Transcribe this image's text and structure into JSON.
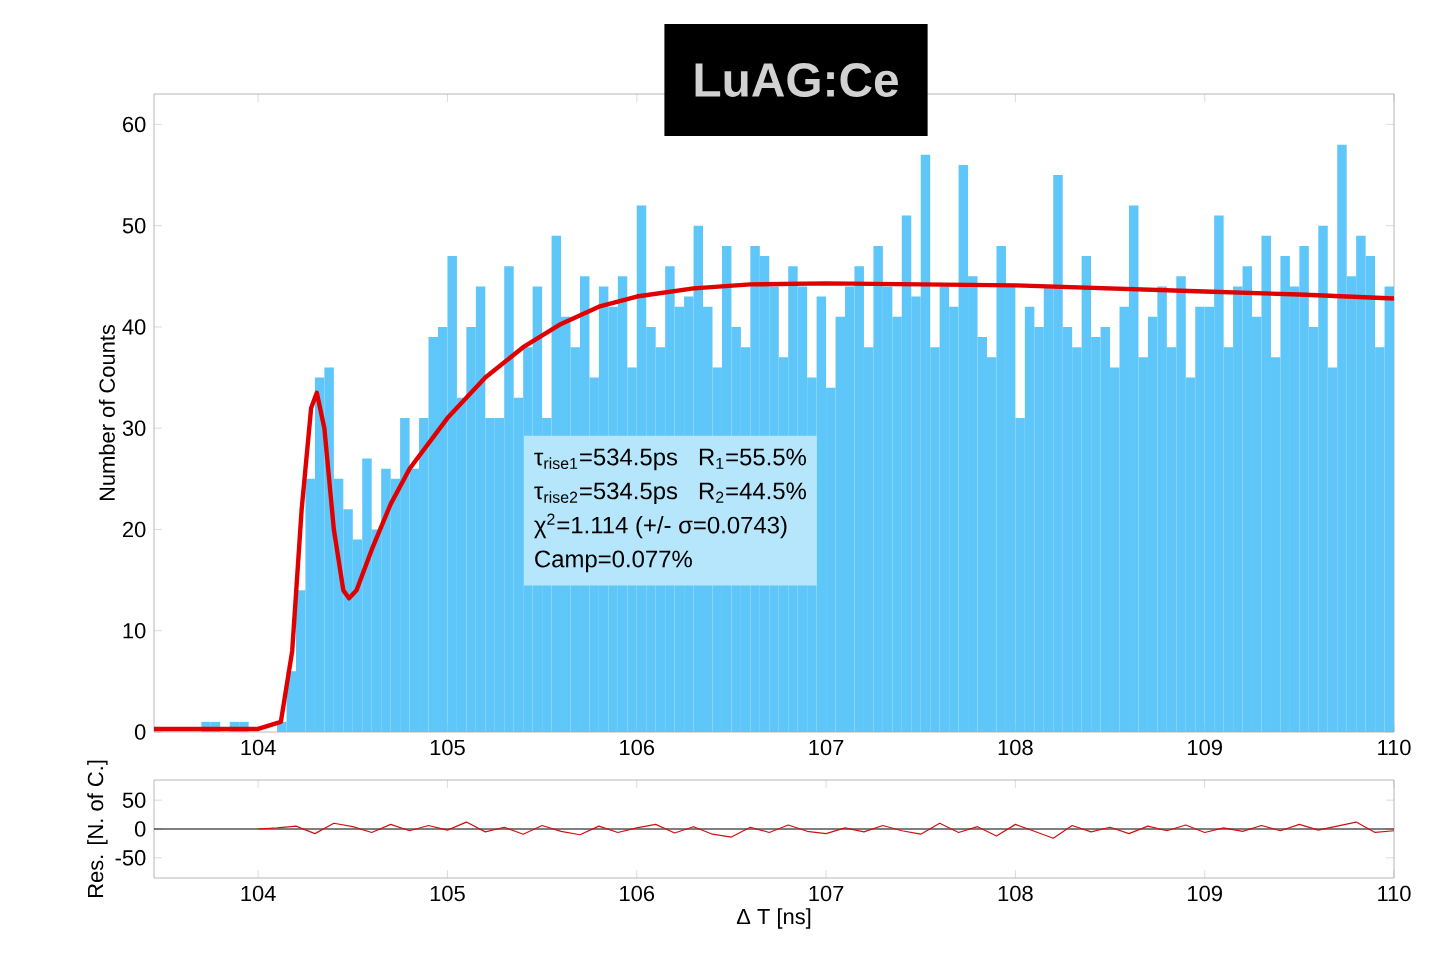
{
  "chart_data": [
    {
      "type": "histogram",
      "title": "LuAG:Ce",
      "ylabel": "Number of Counts",
      "color": "#5ec6f9",
      "bins": [
        103.5,
        103.55,
        103.6,
        103.65,
        103.7,
        103.75,
        103.8,
        103.85,
        103.9,
        103.95,
        104.0,
        104.05,
        104.1,
        104.15,
        104.2,
        104.25,
        104.3,
        104.35,
        104.4,
        104.45,
        104.5,
        104.55,
        104.6,
        104.65,
        104.7,
        104.75,
        104.8,
        104.85,
        104.9,
        104.95,
        105.0,
        105.05,
        105.1,
        105.15,
        105.2,
        105.25,
        105.3,
        105.35,
        105.4,
        105.45,
        105.5,
        105.55,
        105.6,
        105.65,
        105.7,
        105.75,
        105.8,
        105.85,
        105.9,
        105.95,
        106.0,
        106.05,
        106.1,
        106.15,
        106.2,
        106.25,
        106.3,
        106.35,
        106.4,
        106.45,
        106.5,
        106.55,
        106.6,
        106.65,
        106.7,
        106.75,
        106.8,
        106.85,
        106.9,
        106.95,
        107.0,
        107.05,
        107.1,
        107.15,
        107.2,
        107.25,
        107.3,
        107.35,
        107.4,
        107.45,
        107.5,
        107.55,
        107.6,
        107.65,
        107.7,
        107.75,
        107.8,
        107.85,
        107.9,
        107.95,
        108.0,
        108.05,
        108.1,
        108.15,
        108.2,
        108.25,
        108.3,
        108.35,
        108.4,
        108.45,
        108.5,
        108.55,
        108.6,
        108.65,
        108.7,
        108.75,
        108.8,
        108.85,
        108.9,
        108.95,
        109.0,
        109.05,
        109.1,
        109.15,
        109.2,
        109.25,
        109.3,
        109.35,
        109.4,
        109.45,
        109.5,
        109.55,
        109.6,
        109.65,
        109.7,
        109.75,
        109.8,
        109.85,
        109.9,
        109.95,
        110.0
      ],
      "values": [
        0,
        0,
        0,
        0,
        1,
        1,
        0,
        1,
        1,
        0,
        0,
        0,
        1,
        6,
        14,
        25,
        35,
        36,
        25,
        22,
        19,
        27,
        20,
        26,
        25,
        31,
        26,
        31,
        39,
        40,
        47,
        33,
        40,
        44,
        31,
        31,
        46,
        33,
        38,
        44,
        31,
        49,
        41,
        38,
        45,
        35,
        44,
        42,
        45,
        36,
        52,
        40,
        38,
        46,
        42,
        43,
        50,
        42,
        36,
        48,
        40,
        38,
        48,
        47,
        44,
        37,
        46,
        44,
        35,
        43,
        34,
        41,
        44,
        46,
        38,
        48,
        44,
        41,
        51,
        43,
        57,
        38,
        44,
        42,
        56,
        45,
        39,
        37,
        48,
        44,
        31,
        42,
        40,
        44,
        55,
        40,
        38,
        47,
        39,
        40,
        36,
        42,
        52,
        37,
        41,
        44,
        38,
        45,
        35,
        42,
        42,
        51,
        38,
        44,
        46,
        41,
        49,
        37,
        47,
        44,
        48,
        40,
        50,
        36,
        58,
        45,
        49,
        47,
        38,
        44
      ],
      "series": [
        {
          "type": "line",
          "color": "#e00000",
          "x": [
            103.45,
            104.0,
            104.12,
            104.18,
            104.23,
            104.28,
            104.31,
            104.35,
            104.4,
            104.45,
            104.48,
            104.52,
            104.6,
            104.7,
            104.8,
            105.0,
            105.2,
            105.4,
            105.6,
            105.8,
            106.0,
            106.3,
            106.6,
            107.0,
            107.5,
            108.0,
            108.5,
            109.0,
            109.5,
            110.0
          ],
          "values": [
            0.3,
            0.3,
            1,
            8,
            22,
            32,
            33.5,
            30,
            20,
            14,
            13.2,
            14,
            18,
            22.5,
            26,
            31,
            35,
            38,
            40.3,
            42,
            43,
            43.8,
            44.2,
            44.3,
            44.2,
            44.1,
            43.8,
            43.5,
            43.2,
            42.8
          ]
        }
      ],
      "xlim": [
        103.45,
        110
      ],
      "ylim": [
        0,
        63
      ],
      "xticks": [
        104,
        105,
        106,
        107,
        108,
        109,
        110
      ],
      "yticks": [
        0,
        10,
        20,
        30,
        40,
        50,
        60
      ],
      "annotations": [
        "τ$_{rise1}$=534.5ps",
        "R$_{1}$=55.5%",
        "τ$_{rise2}$=534.5ps",
        "R$_{2}$=44.5%",
        "χ$^{2}$=1.114 (+/- σ=0.0743)",
        "Camp=0.077%"
      ]
    },
    {
      "type": "line",
      "xlabel": "Δ T [ns]",
      "ylabel": "Res. [N. of C.]",
      "x": [
        104.0,
        104.1,
        104.2,
        104.3,
        104.4,
        104.5,
        104.6,
        104.7,
        104.8,
        104.9,
        105.0,
        105.1,
        105.2,
        105.3,
        105.4,
        105.5,
        105.6,
        105.7,
        105.8,
        105.9,
        106.0,
        106.1,
        106.2,
        106.3,
        106.4,
        106.5,
        106.6,
        106.7,
        106.8,
        106.9,
        107.0,
        107.1,
        107.2,
        107.3,
        107.4,
        107.5,
        107.6,
        107.7,
        107.8,
        107.9,
        108.0,
        108.1,
        108.2,
        108.3,
        108.4,
        108.5,
        108.6,
        108.7,
        108.8,
        108.9,
        109.0,
        109.1,
        109.2,
        109.3,
        109.4,
        109.5,
        109.6,
        109.7,
        109.8,
        109.9,
        110.0
      ],
      "series": [
        {
          "color": "#d01010",
          "values": [
            0,
            2,
            5,
            -8,
            10,
            4,
            -6,
            8,
            -3,
            6,
            -2,
            12,
            -5,
            3,
            -9,
            6,
            -4,
            -10,
            5,
            -6,
            2,
            8,
            -7,
            4,
            -9,
            -14,
            3,
            -6,
            7,
            -4,
            -8,
            2,
            -5,
            6,
            -3,
            -9,
            10,
            -6,
            4,
            -12,
            8,
            -4,
            -16,
            6,
            -5,
            3,
            -8,
            5,
            -3,
            7,
            -6,
            2,
            -4,
            6,
            -3,
            8,
            -2,
            5,
            12,
            -6,
            -3
          ]
        }
      ],
      "ref_lines": [
        {
          "axis": "y",
          "value": 0,
          "color": "#000000"
        }
      ],
      "xlim": [
        103.45,
        110
      ],
      "ylim": [
        -85,
        85
      ],
      "xticks": [
        104,
        105,
        106,
        107,
        108,
        109,
        110
      ],
      "yticks": [
        -50,
        0,
        50
      ]
    }
  ]
}
